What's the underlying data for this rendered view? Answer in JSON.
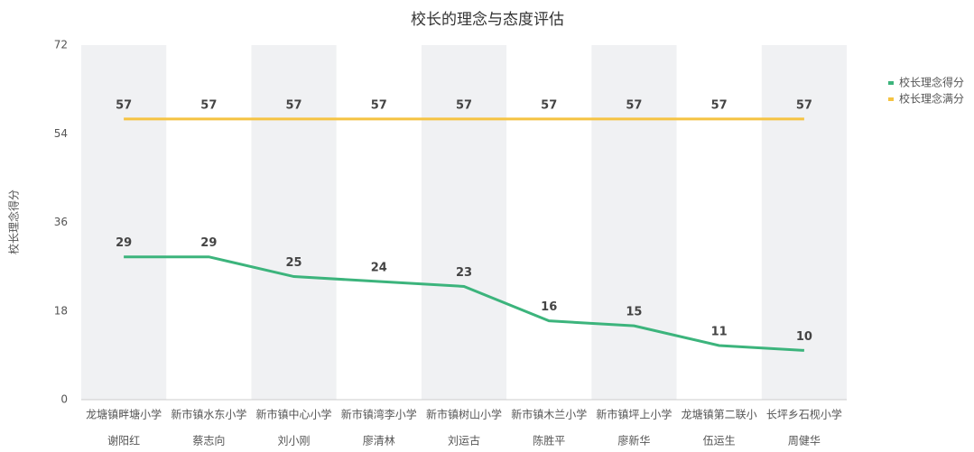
{
  "chart_data": {
    "type": "line",
    "title": "校长的理念与态度评估",
    "y_label": "校长理念得分",
    "categories": [
      [
        "龙塘镇畔塘小学",
        "谢阳红"
      ],
      [
        "新市镇水东小学",
        "蔡志向"
      ],
      [
        "新市镇中心小学",
        "刘小刚"
      ],
      [
        "新市镇湾李小学",
        "廖清林"
      ],
      [
        "新市镇树山小学",
        "刘运古"
      ],
      [
        "新市镇木兰小学",
        "陈胜平"
      ],
      [
        "新市镇坪上小学",
        "廖新华"
      ],
      [
        "龙塘镇第二联小",
        "伍运生"
      ],
      [
        "长坪乡石枧小学",
        "周健华"
      ]
    ],
    "series": [
      {
        "name": "校长理念得分",
        "color": "#3cb47c",
        "values": [
          29,
          29,
          25,
          24,
          23,
          16,
          15,
          11,
          10
        ]
      },
      {
        "name": "校长理念满分",
        "color": "#f5c342",
        "values": [
          57,
          57,
          57,
          57,
          57,
          57,
          57,
          57,
          57
        ]
      }
    ],
    "ylim": [
      0,
      72
    ],
    "yticks": [
      0,
      18,
      36,
      54,
      72
    ],
    "legend": "right",
    "band_color": "#f0f1f3"
  }
}
